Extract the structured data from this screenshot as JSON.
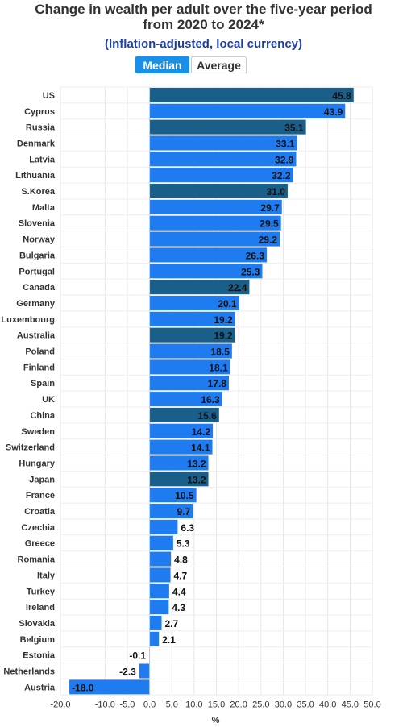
{
  "header": {
    "title_line1": "Change in wealth per adult over the five-year period",
    "title_line2": "from 2020 to 2024*",
    "subtitle": "(Inflation-adjusted, local currency)"
  },
  "toggle": {
    "median_label": "Median",
    "average_label": "Average"
  },
  "colors": {
    "bar": "#1e7cf0",
    "bar_highlight": "#1a5f8a"
  },
  "chart_data": {
    "type": "bar",
    "orientation": "horizontal",
    "categories": [
      "US",
      "Cyprus",
      "Russia",
      "Denmark",
      "Latvia",
      "Lithuania",
      "S.Korea",
      "Malta",
      "Slovenia",
      "Norway",
      "Bulgaria",
      "Portugal",
      "Canada",
      "Germany",
      "Luxembourg",
      "Australia",
      "Poland",
      "Finland",
      "Spain",
      "UK",
      "China",
      "Sweden",
      "Switzerland",
      "Hungary",
      "Japan",
      "France",
      "Croatia",
      "Czechia",
      "Greece",
      "Romania",
      "Italy",
      "Turkey",
      "Ireland",
      "Slovakia",
      "Belgium",
      "Estonia",
      "Netherlands",
      "Austria"
    ],
    "values": [
      45.8,
      43.9,
      35.1,
      33.1,
      32.9,
      32.2,
      31.0,
      29.7,
      29.5,
      29.2,
      26.3,
      25.3,
      22.4,
      20.1,
      19.2,
      19.2,
      18.5,
      18.1,
      17.8,
      16.3,
      15.6,
      14.2,
      14.1,
      13.2,
      13.2,
      10.5,
      9.7,
      6.3,
      5.3,
      4.8,
      4.7,
      4.4,
      4.3,
      2.7,
      2.1,
      -0.1,
      -2.3,
      -18.0
    ],
    "value_labels": [
      "45.8",
      "43.9",
      "35.1",
      "33.1",
      "32.9",
      "32.2",
      "31.0",
      "29.7",
      "29.5",
      "29.2",
      "26.3",
      "25.3",
      "22.4",
      "20.1",
      "19.2",
      "19.2",
      "18.5",
      "18.1",
      "17.8",
      "16.3",
      "15.6",
      "14.2",
      "14.1",
      "13.2",
      "13.2",
      "10.5",
      "9.7",
      "6.3",
      "5.3",
      "4.8",
      "4.7",
      "4.4",
      "4.3",
      "2.7",
      "2.1",
      "-0.1",
      "-2.3",
      "-18.0"
    ],
    "highlighted": [
      "US",
      "Russia",
      "S.Korea",
      "Canada",
      "Australia",
      "China",
      "Japan"
    ],
    "xlim": [
      -20,
      50
    ],
    "xticks": [
      "-20.0",
      "-10.0",
      "-5.0",
      "0.0",
      "5.0",
      "10.0",
      "15.0",
      "20.0",
      "25.0",
      "30.0",
      "35.0",
      "40.0",
      "45.0",
      "50.0"
    ],
    "xlabel": "%",
    "grid": true
  }
}
